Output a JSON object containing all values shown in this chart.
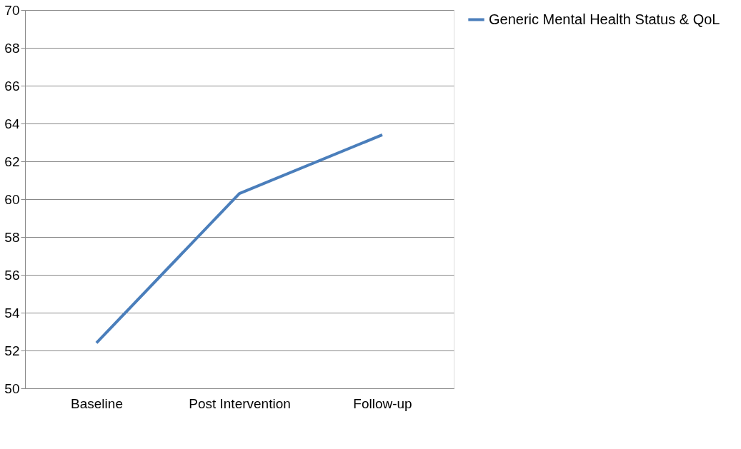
{
  "chart_data": {
    "type": "line",
    "categories": [
      "Baseline",
      "Post Intervention",
      "Follow-up"
    ],
    "series": [
      {
        "name": "Generic Mental Health Status & QoL",
        "color": "#4a7ebb",
        "values": [
          52.4,
          60.3,
          63.4
        ]
      }
    ],
    "ylim": [
      50,
      70
    ],
    "yticks": [
      50,
      52,
      54,
      56,
      58,
      60,
      62,
      64,
      66,
      68,
      70
    ],
    "grid": "y",
    "legend": "right",
    "marker": "none",
    "line_style": "solid"
  }
}
